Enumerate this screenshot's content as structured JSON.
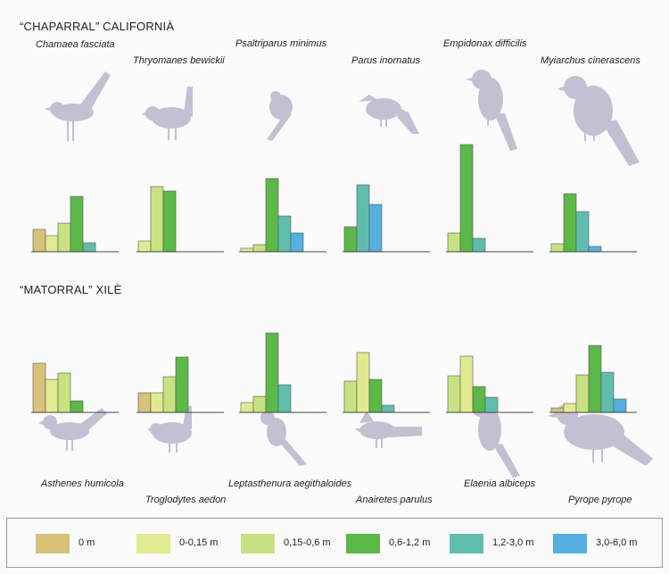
{
  "sections": [
    {
      "title": "“CHAPARRAL” CALIFORNIÀ",
      "species": [
        {
          "name": "Chamaea fasciata",
          "values": [
            25,
            18,
            32,
            62,
            10
          ],
          "colors": [
            "#d7c27a",
            "#e2ea91",
            "#c7e381",
            "#5cb847",
            "#5fbdb0"
          ],
          "bird": "wren-bird-icon"
        },
        {
          "name": "Thryomanes bewickii",
          "values": [
            12,
            73,
            68
          ],
          "colors": [
            "#e2ea91",
            "#c7e381",
            "#5cb847"
          ],
          "bird": "wren-bird-icon"
        },
        {
          "name": "Psaltriparus minimus",
          "values": [
            4,
            8,
            82,
            40,
            21
          ],
          "colors": [
            "#e2ea91",
            "#c7e381",
            "#5cb847",
            "#5fbdb0",
            "#57aee0"
          ],
          "bird": "small-bird-icon"
        },
        {
          "name": "Parus inornatus",
          "values": [
            28,
            75,
            53
          ],
          "colors": [
            "#5cb847",
            "#5fbdb0",
            "#57aee0"
          ],
          "bird": "titmouse-bird-icon"
        },
        {
          "name": "Empidonax difficilis",
          "values": [
            21,
            120,
            15
          ],
          "colors": [
            "#c7e381",
            "#5cb847",
            "#5fbdb0"
          ],
          "bird": "flycatcher-bird-icon"
        },
        {
          "name": "Myiarchus cinerascens",
          "values": [
            9,
            65,
            45,
            6
          ],
          "colors": [
            "#c7e381",
            "#5cb847",
            "#5fbdb0",
            "#57aee0"
          ],
          "bird": "flycatcher-bird-icon"
        }
      ]
    },
    {
      "title": "“MATORRAL” XILÈ",
      "species": [
        {
          "name": "Asthenes humicola",
          "values": [
            55,
            37,
            44,
            13
          ],
          "colors": [
            "#d7c27a",
            "#e2ea91",
            "#c7e381",
            "#5cb847"
          ],
          "bird": "wren-bird-icon"
        },
        {
          "name": "Troglodytes aedon",
          "values": [
            22,
            22,
            40,
            62
          ],
          "colors": [
            "#d7c27a",
            "#e2ea91",
            "#c7e381",
            "#5cb847"
          ],
          "bird": "wren-bird-icon"
        },
        {
          "name": "Leptasthenura aegithaloides",
          "values": [
            11,
            18,
            89,
            31
          ],
          "colors": [
            "#e2ea91",
            "#c7e381",
            "#5cb847",
            "#5fbdb0"
          ],
          "bird": "small-bird-icon"
        },
        {
          "name": "Anairetes parulus",
          "values": [
            35,
            67,
            37,
            8
          ],
          "colors": [
            "#c7e381",
            "#e2ea91",
            "#5cb847",
            "#5fbdb0"
          ],
          "bird": "titmouse-bird-icon"
        },
        {
          "name": "Elaenia albiceps",
          "values": [
            41,
            63,
            29,
            17
          ],
          "colors": [
            "#c7e381",
            "#e2ea91",
            "#5cb847",
            "#5fbdb0"
          ],
          "bird": "flycatcher-bird-icon"
        },
        {
          "name": "Pyrope pyrope",
          "values": [
            5,
            10,
            42,
            75,
            45,
            15
          ],
          "colors": [
            "#d7c27a",
            "#e2ea91",
            "#c7e381",
            "#5cb847",
            "#5fbdb0",
            "#57aee0"
          ],
          "bird": "flycatcher-bird-icon"
        }
      ]
    }
  ],
  "legend": [
    {
      "label": "0 m",
      "color": "#d7c27a"
    },
    {
      "label": "0-0,15 m",
      "color": "#e2ea91"
    },
    {
      "label": "0,15-0,6 m",
      "color": "#c7e381"
    },
    {
      "label": "0,6-1,2 m",
      "color": "#5cb847"
    },
    {
      "label": "1,2-3,0 m",
      "color": "#5fbdb0"
    },
    {
      "label": "3,0-6,0 m",
      "color": "#57aee0"
    }
  ]
}
